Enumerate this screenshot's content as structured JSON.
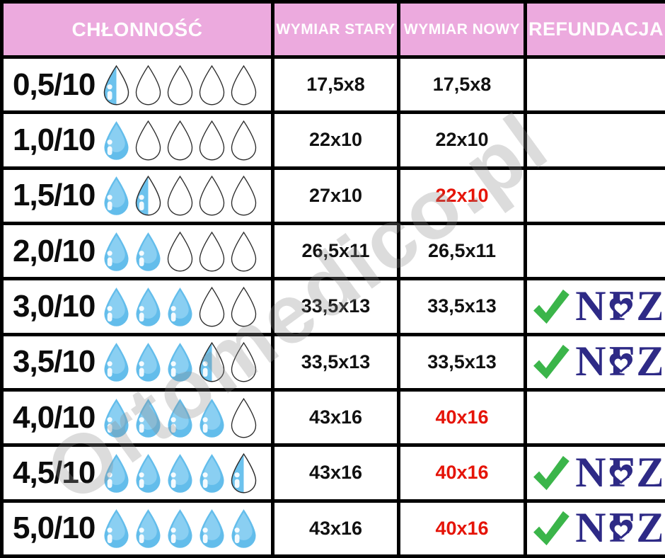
{
  "header": {
    "absorbency": "CHŁONNOŚĆ",
    "old_size": "WYMIAR STARY",
    "new_size": "WYMIAR NOWY",
    "refund": "REFUNDACJA"
  },
  "watermark": "Ortomedico.pl",
  "refund_badge": {
    "logo_text": "NFZ",
    "check_icon": "checkmark"
  },
  "colors": {
    "header_bg": "#ecaade",
    "header_text": "#ffffff",
    "border": "#000000",
    "changed_value_red": "#e51408",
    "drop_blue": "#63bdeb",
    "drop_blue_light": "#8acff2",
    "nfz_navy": "#2e2a86",
    "check_green": "#3bb54a",
    "watermark_gray": "#8c8c8c"
  },
  "rows": [
    {
      "absorbency": "0,5/10",
      "drops": {
        "full": 0,
        "half": 1,
        "empty": 4
      },
      "old_size": "17,5x8",
      "new_size": "17,5x8",
      "new_changed": false,
      "refund": false
    },
    {
      "absorbency": "1,0/10",
      "drops": {
        "full": 1,
        "half": 0,
        "empty": 4
      },
      "old_size": "22x10",
      "new_size": "22x10",
      "new_changed": false,
      "refund": false
    },
    {
      "absorbency": "1,5/10",
      "drops": {
        "full": 1,
        "half": 1,
        "empty": 3
      },
      "old_size": "27x10",
      "new_size": "22x10",
      "new_changed": true,
      "refund": false
    },
    {
      "absorbency": "2,0/10",
      "drops": {
        "full": 2,
        "half": 0,
        "empty": 3
      },
      "old_size": "26,5x11",
      "new_size": "26,5x11",
      "new_changed": false,
      "refund": false
    },
    {
      "absorbency": "3,0/10",
      "drops": {
        "full": 3,
        "half": 0,
        "empty": 2
      },
      "old_size": "33,5x13",
      "new_size": "33,5x13",
      "new_changed": false,
      "refund": true
    },
    {
      "absorbency": "3,5/10",
      "drops": {
        "full": 3,
        "half": 1,
        "empty": 1
      },
      "old_size": "33,5x13",
      "new_size": "33,5x13",
      "new_changed": false,
      "refund": true
    },
    {
      "absorbency": "4,0/10",
      "drops": {
        "full": 4,
        "half": 0,
        "empty": 1
      },
      "old_size": "43x16",
      "new_size": "40x16",
      "new_changed": true,
      "refund": false
    },
    {
      "absorbency": "4,5/10",
      "drops": {
        "full": 4,
        "half": 1,
        "empty": 0
      },
      "old_size": "43x16",
      "new_size": "40x16",
      "new_changed": true,
      "refund": true
    },
    {
      "absorbency": "5,0/10",
      "drops": {
        "full": 5,
        "half": 0,
        "empty": 0
      },
      "old_size": "43x16",
      "new_size": "40x16",
      "new_changed": true,
      "refund": true
    }
  ],
  "chart_data": {
    "type": "table",
    "columns": [
      "CHŁONNOŚĆ",
      "WYMIAR STARY",
      "WYMIAR NOWY",
      "REFUNDACJA"
    ],
    "rows": [
      {
        "chlonnosc": "0,5/10",
        "drops_filled_of_5": 0.5,
        "wymiar_stary": "17,5x8",
        "wymiar_nowy": "17,5x8",
        "wymiar_nowy_highlight_red": false,
        "refundacja_nfz": false
      },
      {
        "chlonnosc": "1,0/10",
        "drops_filled_of_5": 1.0,
        "wymiar_stary": "22x10",
        "wymiar_nowy": "22x10",
        "wymiar_nowy_highlight_red": false,
        "refundacja_nfz": false
      },
      {
        "chlonnosc": "1,5/10",
        "drops_filled_of_5": 1.5,
        "wymiar_stary": "27x10",
        "wymiar_nowy": "22x10",
        "wymiar_nowy_highlight_red": true,
        "refundacja_nfz": false
      },
      {
        "chlonnosc": "2,0/10",
        "drops_filled_of_5": 2.0,
        "wymiar_stary": "26,5x11",
        "wymiar_nowy": "26,5x11",
        "wymiar_nowy_highlight_red": false,
        "refundacja_nfz": false
      },
      {
        "chlonnosc": "3,0/10",
        "drops_filled_of_5": 3.0,
        "wymiar_stary": "33,5x13",
        "wymiar_nowy": "33,5x13",
        "wymiar_nowy_highlight_red": false,
        "refundacja_nfz": true
      },
      {
        "chlonnosc": "3,5/10",
        "drops_filled_of_5": 3.5,
        "wymiar_stary": "33,5x13",
        "wymiar_nowy": "33,5x13",
        "wymiar_nowy_highlight_red": false,
        "refundacja_nfz": true
      },
      {
        "chlonnosc": "4,0/10",
        "drops_filled_of_5": 4.0,
        "wymiar_stary": "43x16",
        "wymiar_nowy": "40x16",
        "wymiar_nowy_highlight_red": true,
        "refundacja_nfz": false
      },
      {
        "chlonnosc": "4,5/10",
        "drops_filled_of_5": 4.5,
        "wymiar_stary": "43x16",
        "wymiar_nowy": "40x16",
        "wymiar_nowy_highlight_red": true,
        "refundacja_nfz": true
      },
      {
        "chlonnosc": "5,0/10",
        "drops_filled_of_5": 5.0,
        "wymiar_stary": "43x16",
        "wymiar_nowy": "40x16",
        "wymiar_nowy_highlight_red": true,
        "refundacja_nfz": true
      }
    ],
    "title": "",
    "legend": "droplet pictograms show absorbency level out of 5 drops; red values mark changed new dimensions; NFZ logo with green check marks refunded sizes"
  }
}
